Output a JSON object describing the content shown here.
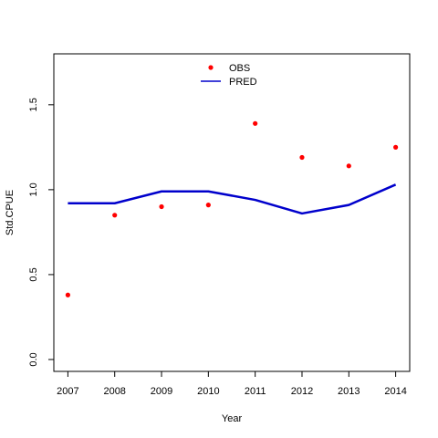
{
  "chart_data": {
    "type": "line",
    "title": "",
    "xlabel": "Year",
    "ylabel": "Std.CPUE",
    "x": [
      2007,
      2008,
      2009,
      2010,
      2011,
      2012,
      2013,
      2014
    ],
    "x_tick_labels": [
      "2007",
      "2008",
      "2009",
      "2010",
      "2011",
      "2012",
      "2013",
      "2014"
    ],
    "y_ticks": [
      0.0,
      0.5,
      1.0,
      1.5
    ],
    "y_tick_labels": [
      "0.0",
      "0.5",
      "1.0",
      "1.5"
    ],
    "xlim": [
      2006.7,
      2014.3
    ],
    "ylim": [
      -0.07,
      1.8
    ],
    "grid": false,
    "legend_position": "top-center",
    "series": [
      {
        "name": "OBS",
        "kind": "points",
        "color": "#ff0000",
        "values": [
          0.38,
          0.85,
          0.9,
          0.91,
          1.39,
          1.19,
          1.14,
          1.25
        ]
      },
      {
        "name": "PRED",
        "kind": "line",
        "color": "#0000cc",
        "values": [
          0.92,
          0.92,
          0.99,
          0.99,
          0.94,
          0.86,
          0.91,
          1.03
        ]
      }
    ]
  }
}
